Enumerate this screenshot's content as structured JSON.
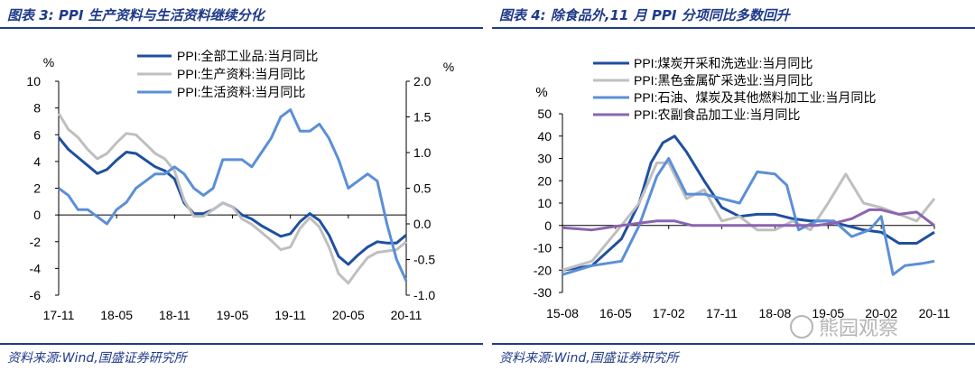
{
  "left": {
    "title": "图表 3: PPI 生产资料与生活资料继续分化",
    "source": "资料来源:Wind,国盛证券研究所"
  },
  "right": {
    "title": "图表 4: 除食品外,11 月 PPI 分项同比多数回升",
    "source": "资料来源:Wind,国盛证券研究所",
    "watermark": "熊园观察"
  },
  "chart_data": [
    {
      "type": "line",
      "x": [
        "17-11",
        "17-12",
        "18-01",
        "18-02",
        "18-03",
        "18-04",
        "18-05",
        "18-06",
        "18-07",
        "18-08",
        "18-09",
        "18-10",
        "18-11",
        "18-12",
        "19-01",
        "19-02",
        "19-03",
        "19-04",
        "19-05",
        "19-06",
        "19-07",
        "19-08",
        "19-09",
        "19-10",
        "19-11",
        "19-12",
        "20-01",
        "20-02",
        "20-03",
        "20-04",
        "20-05",
        "20-06",
        "20-07",
        "20-08",
        "20-09",
        "20-10",
        "20-11"
      ],
      "xticks": [
        "17-11",
        "18-05",
        "18-11",
        "19-05",
        "19-11",
        "20-05",
        "20-11"
      ],
      "ylabel_left": "%",
      "ylabel_right": "%",
      "yticks_left": [
        "10",
        "8",
        "6",
        "4",
        "2",
        "0",
        "-2",
        "-4",
        "-6"
      ],
      "yticks_right": [
        "2.0",
        "1.5",
        "1.0",
        "0.5",
        "0.0",
        "-0.5",
        "-1.0"
      ],
      "ylim_left": [
        -6,
        10
      ],
      "ylim_right": [
        -1.0,
        2.0
      ],
      "legend_position": "top",
      "series": [
        {
          "name": "PPI:全部工业品:当月同比",
          "axis": "left",
          "color": "#1f4fa0",
          "values": [
            5.8,
            4.9,
            4.3,
            3.7,
            3.1,
            3.4,
            4.1,
            4.7,
            4.6,
            4.1,
            3.6,
            3.3,
            2.7,
            0.9,
            0.1,
            0.1,
            0.4,
            0.9,
            0.6,
            0.0,
            -0.3,
            -0.8,
            -1.2,
            -1.6,
            -1.4,
            -0.5,
            0.1,
            -0.4,
            -1.5,
            -3.1,
            -3.7,
            -3.0,
            -2.4,
            -2.0,
            -2.1,
            -2.1,
            -1.5
          ]
        },
        {
          "name": "PPI:生产资料:当月同比",
          "axis": "left",
          "color": "#bfbfbf",
          "values": [
            7.6,
            6.4,
            5.8,
            4.9,
            4.2,
            4.6,
            5.4,
            6.1,
            6.0,
            5.3,
            4.6,
            4.2,
            3.3,
            1.1,
            -0.1,
            -0.1,
            0.4,
            0.9,
            0.6,
            -0.3,
            -0.7,
            -1.3,
            -1.9,
            -2.6,
            -2.4,
            -1.0,
            -0.2,
            -0.9,
            -2.4,
            -4.4,
            -5.1,
            -4.1,
            -3.2,
            -2.8,
            -2.7,
            -2.6,
            -2.0
          ]
        },
        {
          "name": "PPI:生活资料:当月同比",
          "axis": "right",
          "color": "#5b8fd6",
          "values": [
            0.5,
            0.4,
            0.2,
            0.2,
            0.1,
            0.0,
            0.2,
            0.3,
            0.5,
            0.6,
            0.7,
            0.7,
            0.8,
            0.7,
            0.5,
            0.4,
            0.5,
            0.9,
            0.9,
            0.9,
            0.8,
            1.0,
            1.2,
            1.5,
            1.6,
            1.3,
            1.3,
            1.4,
            1.2,
            0.9,
            0.5,
            0.6,
            0.7,
            0.6,
            0.0,
            -0.5,
            -0.8
          ]
        }
      ]
    },
    {
      "type": "line",
      "x_start": "2015-08",
      "x_end": "2020-11",
      "xticks": [
        "15-08",
        "16-05",
        "17-02",
        "17-11",
        "18-08",
        "19-05",
        "20-02",
        "20-11"
      ],
      "ylabel": "%",
      "yticks": [
        "50",
        "40",
        "30",
        "20",
        "10",
        "0",
        "-10",
        "-20",
        "-30"
      ],
      "ylim": [
        -30,
        50
      ],
      "legend_position": "top",
      "series": [
        {
          "name": "PPI:煤炭开采和洗选业:当月同比",
          "color": "#1f4fa0",
          "points": [
            [
              "2015-08",
              -20
            ],
            [
              "2016-01",
              -18
            ],
            [
              "2016-06",
              -6
            ],
            [
              "2016-09",
              10
            ],
            [
              "2016-11",
              28
            ],
            [
              "2017-01",
              37
            ],
            [
              "2017-03",
              40
            ],
            [
              "2017-05",
              33
            ],
            [
              "2017-08",
              20
            ],
            [
              "2017-11",
              8
            ],
            [
              "2018-02",
              4
            ],
            [
              "2018-05",
              5
            ],
            [
              "2018-08",
              5
            ],
            [
              "2018-11",
              3
            ],
            [
              "2019-02",
              2
            ],
            [
              "2019-05",
              2
            ],
            [
              "2019-08",
              0
            ],
            [
              "2019-11",
              -2
            ],
            [
              "2020-02",
              -3
            ],
            [
              "2020-05",
              -8
            ],
            [
              "2020-08",
              -8
            ],
            [
              "2020-11",
              -3
            ]
          ]
        },
        {
          "name": "PPI:黑色金属矿采选业:当月同比",
          "color": "#bfbfbf",
          "points": [
            [
              "2015-08",
              -20
            ],
            [
              "2016-01",
              -16
            ],
            [
              "2016-06",
              0
            ],
            [
              "2016-09",
              10
            ],
            [
              "2016-12",
              28
            ],
            [
              "2017-02",
              28
            ],
            [
              "2017-05",
              12
            ],
            [
              "2017-08",
              16
            ],
            [
              "2017-11",
              2
            ],
            [
              "2018-02",
              4
            ],
            [
              "2018-05",
              -2
            ],
            [
              "2018-08",
              -2
            ],
            [
              "2018-11",
              2
            ],
            [
              "2019-02",
              -2
            ],
            [
              "2019-05",
              10
            ],
            [
              "2019-08",
              23
            ],
            [
              "2019-11",
              10
            ],
            [
              "2020-02",
              8
            ],
            [
              "2020-05",
              5
            ],
            [
              "2020-08",
              2
            ],
            [
              "2020-11",
              12
            ]
          ]
        },
        {
          "name": "PPI:石油、煤炭及其他燃料加工业:当月同比",
          "color": "#5b8fd6",
          "points": [
            [
              "2015-08",
              -22
            ],
            [
              "2016-01",
              -18
            ],
            [
              "2016-06",
              -16
            ],
            [
              "2016-09",
              0
            ],
            [
              "2016-12",
              22
            ],
            [
              "2017-02",
              30
            ],
            [
              "2017-05",
              14
            ],
            [
              "2017-08",
              14
            ],
            [
              "2017-11",
              12
            ],
            [
              "2018-02",
              10
            ],
            [
              "2018-05",
              24
            ],
            [
              "2018-08",
              23
            ],
            [
              "2018-10",
              18
            ],
            [
              "2018-12",
              -2
            ],
            [
              "2019-03",
              2
            ],
            [
              "2019-06",
              2
            ],
            [
              "2019-09",
              -5
            ],
            [
              "2019-12",
              -2
            ],
            [
              "2020-02",
              4
            ],
            [
              "2020-04",
              -22
            ],
            [
              "2020-06",
              -18
            ],
            [
              "2020-09",
              -17
            ],
            [
              "2020-11",
              -16
            ]
          ]
        },
        {
          "name": "PPI:农副食品加工业:当月同比",
          "color": "#8a64b0",
          "points": [
            [
              "2015-08",
              -1
            ],
            [
              "2016-01",
              -2
            ],
            [
              "2016-06",
              0
            ],
            [
              "2016-09",
              1
            ],
            [
              "2016-12",
              2
            ],
            [
              "2017-03",
              2
            ],
            [
              "2017-06",
              0
            ],
            [
              "2017-09",
              0
            ],
            [
              "2017-12",
              0
            ],
            [
              "2018-03",
              0
            ],
            [
              "2018-06",
              0
            ],
            [
              "2018-09",
              0
            ],
            [
              "2018-12",
              0
            ],
            [
              "2019-03",
              0
            ],
            [
              "2019-06",
              1
            ],
            [
              "2019-09",
              3
            ],
            [
              "2019-12",
              7
            ],
            [
              "2020-02",
              7
            ],
            [
              "2020-05",
              5
            ],
            [
              "2020-08",
              6
            ],
            [
              "2020-11",
              0
            ]
          ]
        }
      ]
    }
  ]
}
